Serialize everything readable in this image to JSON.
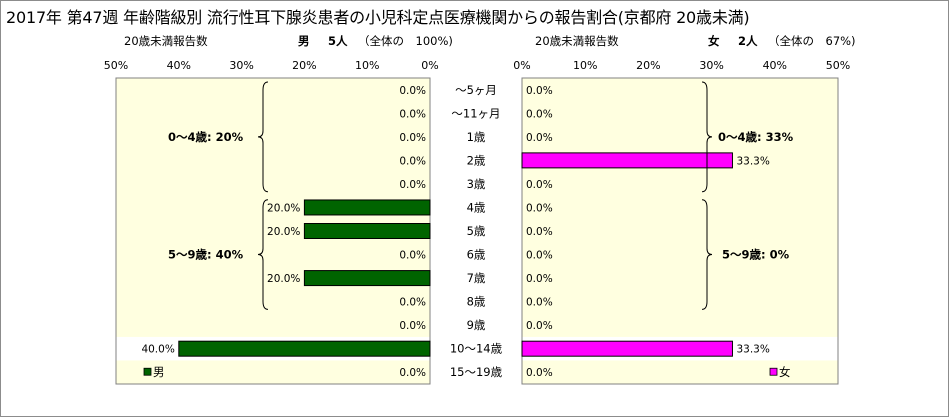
{
  "title": "2017年 第47週 年齢階級別 流行性耳下腺炎患者の小児科定点医療機関からの報告割合(京都府 20歳未満)",
  "left_header": {
    "label": "20歳未満報告数",
    "sex": "男",
    "count": "5人",
    "total": "（全体の　100%)"
  },
  "right_header": {
    "label": "20歳未満報告数",
    "sex": "女",
    "count": "2人",
    "total": "（全体の　67%)"
  },
  "colors": {
    "male_bar": "#006400",
    "female_bar": "#ff00ff",
    "plot_bg": "#ffffe0",
    "band_bg": "#ffffff"
  },
  "chart_data": [
    {
      "type": "bar",
      "orientation": "horizontal-reversed",
      "categories": [
        "～5ヶ月",
        "～11ヶ月",
        "1歳",
        "2歳",
        "3歳",
        "4歳",
        "5歳",
        "6歳",
        "7歳",
        "8歳",
        "9歳",
        "10～14歳",
        "15～19歳"
      ],
      "series": [
        {
          "name": "男",
          "values": [
            0.0,
            0.0,
            0.0,
            0.0,
            0.0,
            20.0,
            20.0,
            0.0,
            20.0,
            0.0,
            0.0,
            40.0,
            0.0
          ],
          "labels": [
            "0.0%",
            "0.0%",
            "0.0%",
            "0.0%",
            "0.0%",
            "20.0%",
            "20.0%",
            "0.0%",
            "20.0%",
            "0.0%",
            "0.0%",
            "40.0%",
            "0.0%"
          ]
        }
      ],
      "xlim": [
        0,
        50
      ],
      "ticks": [
        "50%",
        "40%",
        "30%",
        "20%",
        "10%",
        "0%"
      ],
      "annotations": [
        {
          "text": "0～4歳: 20%"
        },
        {
          "text": "5～9歳: 40%"
        }
      ]
    },
    {
      "type": "bar",
      "orientation": "horizontal",
      "categories": [
        "～5ヶ月",
        "～11ヶ月",
        "1歳",
        "2歳",
        "3歳",
        "4歳",
        "5歳",
        "6歳",
        "7歳",
        "8歳",
        "9歳",
        "10～14歳",
        "15～19歳"
      ],
      "series": [
        {
          "name": "女",
          "values": [
            0.0,
            0.0,
            0.0,
            33.3,
            0.0,
            0.0,
            0.0,
            0.0,
            0.0,
            0.0,
            0.0,
            33.3,
            0.0
          ],
          "labels": [
            "0.0%",
            "0.0%",
            "0.0%",
            "33.3%",
            "0.0%",
            "0.0%",
            "0.0%",
            "0.0%",
            "0.0%",
            "0.0%",
            "0.0%",
            "33.3%",
            "0.0%"
          ]
        }
      ],
      "xlim": [
        0,
        50
      ],
      "ticks": [
        "0%",
        "10%",
        "20%",
        "30%",
        "40%",
        "50%"
      ],
      "annotations": [
        {
          "text": "0～4歳: 33%"
        },
        {
          "text": "5～9歳: 0%"
        }
      ]
    }
  ]
}
